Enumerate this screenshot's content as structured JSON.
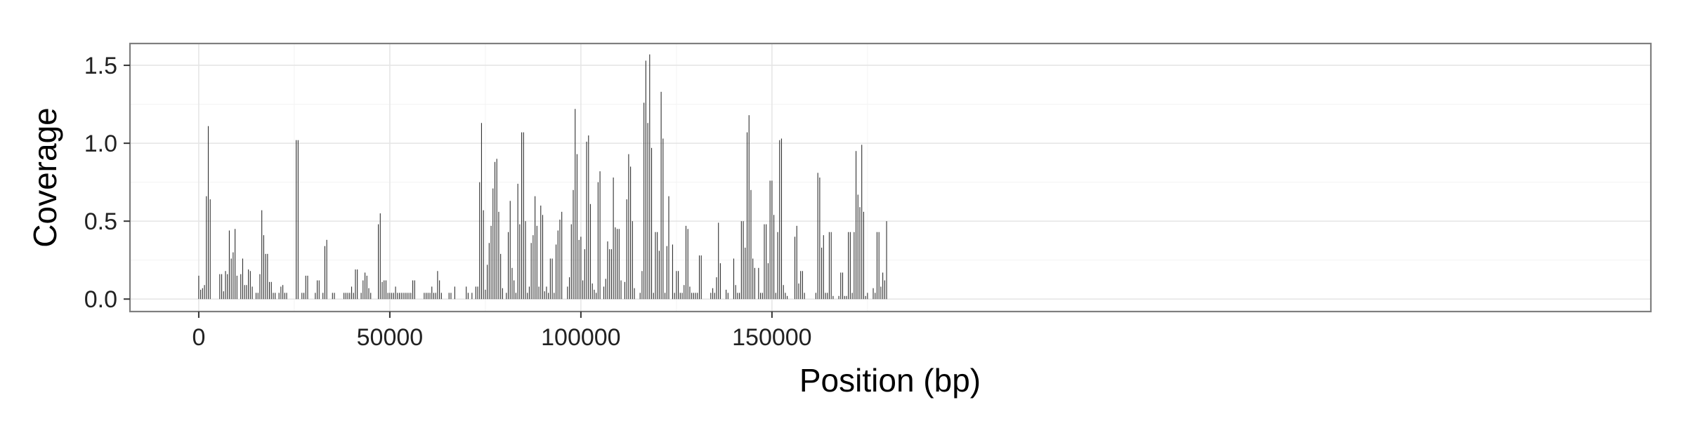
{
  "chart_data": {
    "type": "bar",
    "title": "",
    "xlabel": "Position (bp)",
    "ylabel": "Coverage",
    "xlim": [
      -18000,
      380000
    ],
    "ylim": [
      -0.08,
      1.64
    ],
    "x_ticks": [
      0,
      50000,
      100000,
      150000
    ],
    "x_tick_labels": [
      "0",
      "50000",
      "100000",
      "150000"
    ],
    "y_ticks": [
      0.0,
      0.5,
      1.0,
      1.5
    ],
    "y_tick_labels": [
      "0.0",
      "0.5",
      "1.0",
      "1.5"
    ],
    "grid": true,
    "legend": "none",
    "bar_color": "#333333",
    "bin_width_bp": 500,
    "x": [
      0,
      500,
      1000,
      1500,
      2000,
      2500,
      3000,
      5500,
      6000,
      6500,
      7000,
      7500,
      8000,
      8500,
      9000,
      9500,
      10000,
      11000,
      11500,
      12000,
      12500,
      13000,
      13500,
      14000,
      15000,
      15500,
      16000,
      16500,
      17000,
      17500,
      18000,
      18500,
      19000,
      19500,
      20000,
      21000,
      21500,
      22000,
      22500,
      23000,
      25500,
      26000,
      27000,
      27500,
      28000,
      28500,
      30500,
      31000,
      31500,
      32500,
      33000,
      33500,
      35000,
      35500,
      38000,
      38500,
      39000,
      39500,
      40000,
      40500,
      41000,
      41500,
      42500,
      43000,
      43500,
      44000,
      44500,
      45000,
      47000,
      47500,
      48000,
      48500,
      49000,
      49500,
      50000,
      50500,
      51000,
      51500,
      52000,
      52500,
      53000,
      53500,
      54000,
      54500,
      55000,
      55500,
      56000,
      56500,
      59000,
      59500,
      60000,
      60500,
      61000,
      61500,
      62000,
      62500,
      63000,
      63500,
      65500,
      66000,
      67000,
      70000,
      70500,
      71500,
      72500,
      73000,
      73500,
      74000,
      74500,
      75000,
      75500,
      76000,
      76500,
      77000,
      77500,
      78000,
      78500,
      79000,
      79500,
      80500,
      81000,
      81500,
      82000,
      82500,
      83000,
      83500,
      84000,
      84500,
      85000,
      85500,
      86000,
      86500,
      87000,
      87500,
      88000,
      88500,
      89000,
      89500,
      90000,
      90500,
      91000,
      91500,
      92000,
      92500,
      93000,
      93500,
      94000,
      94500,
      95000,
      96500,
      97000,
      97500,
      98000,
      98500,
      99000,
      99500,
      100000,
      100500,
      101000,
      101500,
      102000,
      102500,
      103000,
      103500,
      104000,
      104500,
      105000,
      106000,
      106500,
      107000,
      107500,
      108000,
      108500,
      109000,
      109500,
      110000,
      110500,
      111500,
      112000,
      112500,
      113000,
      113500,
      114000,
      115500,
      116000,
      116500,
      117000,
      117500,
      118000,
      118500,
      119000,
      119500,
      120000,
      120500,
      121000,
      121500,
      122000,
      122500,
      123000,
      124000,
      124500,
      125000,
      125500,
      126000,
      126500,
      127000,
      127500,
      128000,
      128500,
      129000,
      129500,
      130000,
      130500,
      131000,
      131500,
      134000,
      134500,
      135000,
      135500,
      136000,
      136500,
      138000,
      138500,
      140000,
      140500,
      141000,
      141500,
      142000,
      142500,
      143000,
      143500,
      144000,
      144500,
      145000,
      145500,
      146500,
      147000,
      147500,
      148000,
      148500,
      149000,
      149500,
      150000,
      150500,
      151000,
      151500,
      152000,
      152500,
      153000,
      153500,
      154000,
      156000,
      156500,
      157000,
      157500,
      158000,
      158500,
      161500,
      162000,
      162500,
      163000,
      163500,
      164000,
      164500,
      165000,
      165500,
      166000,
      167500,
      168000,
      168500,
      169000,
      169500,
      170000,
      170500,
      171000,
      171500,
      172000,
      172500,
      173000,
      173500,
      174000,
      174500,
      175000,
      176500,
      177000,
      177500,
      178000,
      178500,
      179000,
      179500,
      180000
    ],
    "values": [
      0.15,
      0.06,
      0.07,
      0.09,
      0.66,
      1.11,
      0.64,
      0.16,
      0.16,
      0.05,
      0.18,
      0.16,
      0.44,
      0.26,
      0.3,
      0.45,
      0.15,
      0.16,
      0.26,
      0.09,
      0.09,
      0.19,
      0.18,
      0.08,
      0.04,
      0.04,
      0.16,
      0.57,
      0.41,
      0.29,
      0.29,
      0.11,
      0.11,
      0.04,
      0.04,
      0.04,
      0.08,
      0.09,
      0.04,
      0.04,
      1.02,
      1.02,
      0.04,
      0.04,
      0.15,
      0.15,
      0.04,
      0.12,
      0.12,
      0.04,
      0.34,
      0.38,
      0.04,
      0.04,
      0.04,
      0.04,
      0.04,
      0.04,
      0.08,
      0.04,
      0.19,
      0.19,
      0.04,
      0.12,
      0.17,
      0.15,
      0.07,
      0.04,
      0.48,
      0.55,
      0.11,
      0.12,
      0.12,
      0.04,
      0.04,
      0.04,
      0.04,
      0.08,
      0.04,
      0.04,
      0.04,
      0.04,
      0.04,
      0.04,
      0.04,
      0.04,
      0.12,
      0.12,
      0.04,
      0.04,
      0.04,
      0.04,
      0.08,
      0.04,
      0.04,
      0.18,
      0.12,
      0.04,
      0.04,
      0.04,
      0.08,
      0.08,
      0.04,
      0.04,
      0.08,
      0.08,
      0.75,
      1.13,
      0.57,
      0.06,
      0.22,
      0.36,
      0.47,
      0.71,
      0.88,
      0.9,
      0.56,
      0.29,
      0.07,
      0.04,
      0.43,
      0.63,
      0.2,
      0.12,
      0.04,
      0.74,
      0.48,
      1.07,
      1.07,
      0.5,
      0.04,
      0.08,
      0.36,
      0.41,
      0.66,
      0.47,
      0.08,
      0.6,
      0.54,
      0.05,
      0.08,
      0.04,
      0.26,
      0.26,
      0.04,
      0.35,
      0.44,
      0.51,
      0.56,
      0.08,
      0.14,
      0.48,
      0.7,
      1.22,
      0.93,
      0.38,
      0.4,
      0.12,
      0.32,
      1.01,
      1.05,
      0.61,
      0.1,
      0.06,
      0.04,
      0.75,
      0.82,
      0.08,
      0.13,
      0.37,
      0.32,
      0.32,
      0.78,
      0.46,
      0.45,
      0.45,
      0.12,
      0.11,
      0.64,
      0.93,
      0.85,
      0.5,
      0.07,
      0.04,
      0.18,
      1.26,
      1.53,
      1.13,
      1.57,
      0.97,
      0.04,
      0.43,
      0.43,
      0.31,
      1.33,
      1.03,
      0.04,
      0.34,
      0.66,
      0.35,
      0.04,
      0.18,
      0.18,
      0.04,
      0.04,
      0.09,
      0.47,
      0.45,
      0.08,
      0.04,
      0.04,
      0.04,
      0.04,
      0.28,
      0.28,
      0.04,
      0.07,
      0.04,
      0.14,
      0.49,
      0.23,
      0.06,
      0.04,
      0.26,
      0.09,
      0.04,
      0.04,
      0.5,
      0.5,
      0.33,
      1.07,
      1.18,
      0.7,
      0.26,
      0.2,
      0.2,
      0.04,
      0.04,
      0.48,
      0.48,
      0.23,
      0.76,
      0.76,
      0.54,
      0.04,
      0.43,
      1.02,
      1.03,
      0.09,
      0.04,
      0.02,
      0.4,
      0.47,
      0.1,
      0.18,
      0.18,
      0.04,
      0.04,
      0.81,
      0.78,
      0.33,
      0.41,
      0.04,
      0.04,
      0.43,
      0.43,
      0.02,
      0.02,
      0.17,
      0.17,
      0.02,
      0.02,
      0.43,
      0.43,
      0.04,
      0.43,
      0.95,
      0.67,
      0.59,
      0.99,
      0.56,
      0.02,
      0.04,
      0.07,
      0.04,
      0.43,
      0.43,
      0.08,
      0.17,
      0.12,
      0.5
    ]
  }
}
